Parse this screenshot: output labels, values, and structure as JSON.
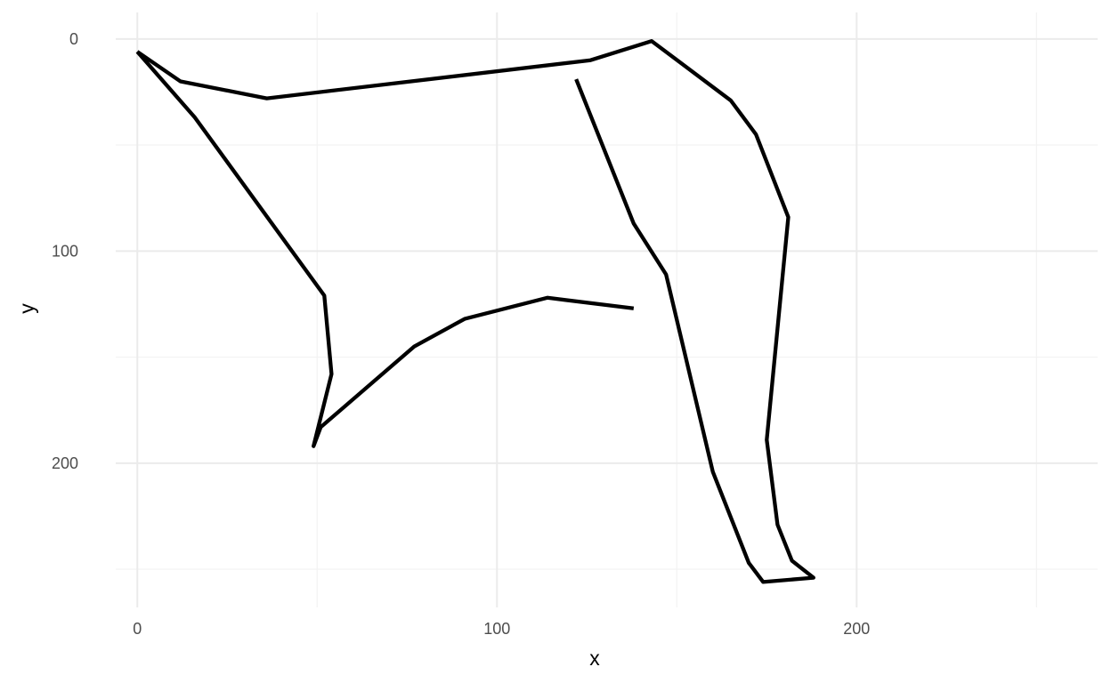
{
  "chart_data": {
    "type": "line",
    "title": "",
    "xlabel": "x",
    "ylabel": "y",
    "xlim": [
      -6,
      267
    ],
    "ylim": [
      -12.5,
      268
    ],
    "y_reversed": true,
    "grid": true,
    "x_major_ticks": [
      0,
      100,
      200
    ],
    "x_minor_ticks": [
      50,
      150,
      250
    ],
    "y_major_ticks": [
      0,
      100,
      200
    ],
    "y_minor_ticks": [
      50,
      150,
      250
    ],
    "x_tick_labels": [
      "0",
      "100",
      "200"
    ],
    "y_tick_labels": [
      "0",
      "100",
      "200"
    ],
    "line_color": "#000000",
    "series": [
      {
        "points": [
          [
            0,
            6
          ],
          [
            12,
            20
          ],
          [
            36,
            28
          ],
          [
            126,
            10
          ],
          [
            143,
            1
          ],
          [
            165,
            29
          ],
          [
            172,
            45
          ],
          [
            181,
            84
          ],
          [
            175,
            189
          ],
          [
            178,
            229
          ],
          [
            182,
            246
          ],
          [
            188,
            254
          ],
          [
            174,
            256
          ],
          [
            170,
            247
          ],
          [
            160,
            204
          ],
          [
            147,
            111
          ],
          [
            138,
            87
          ],
          [
            122,
            19
          ]
        ]
      },
      {
        "points": [
          [
            0,
            6
          ],
          [
            16,
            37
          ],
          [
            52,
            121
          ],
          [
            54,
            158
          ],
          [
            49,
            192
          ],
          [
            51,
            183
          ],
          [
            77,
            145
          ],
          [
            91,
            132
          ],
          [
            114,
            122
          ],
          [
            138,
            127
          ]
        ]
      }
    ]
  }
}
